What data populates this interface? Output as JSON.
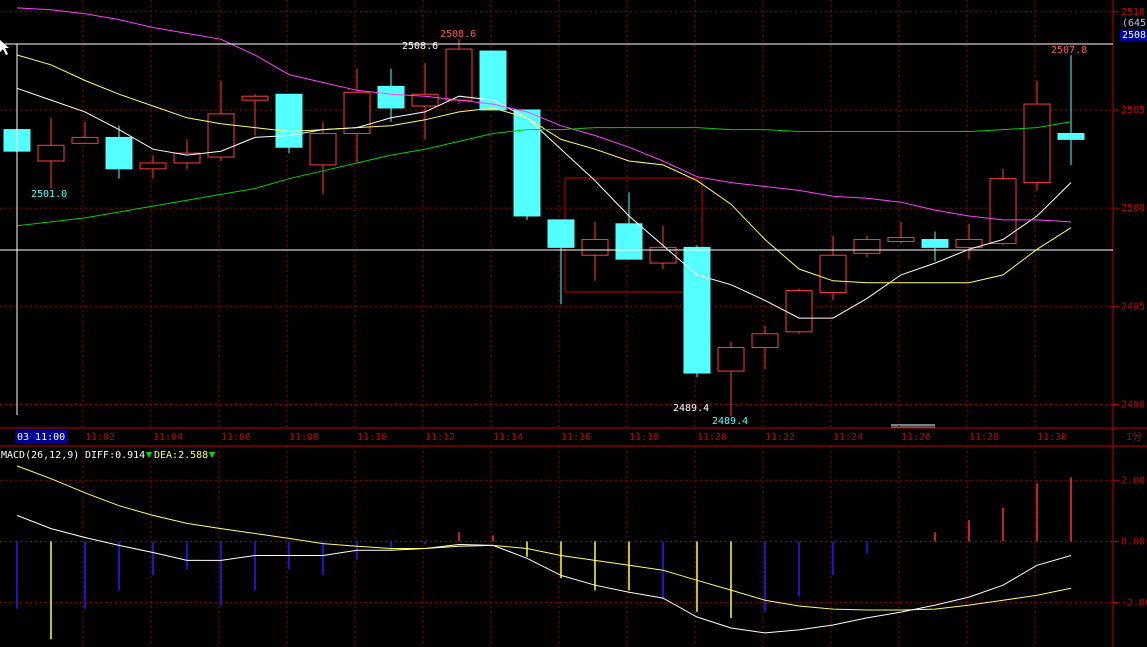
{
  "chart_data": [
    {
      "type": "candlestick",
      "categories": [
        "03 11:00",
        null,
        "11:02",
        null,
        "11:04",
        null,
        "11:06",
        null,
        "11:08",
        null,
        "11:10",
        null,
        "11:12",
        null,
        "11:14",
        null,
        "11:16",
        null,
        "11:18",
        null,
        "11:20",
        null,
        "11:22",
        null,
        "11:24",
        null,
        "11:26",
        null,
        "11:28",
        null,
        "11:30",
        null
      ],
      "open": [
        2504.0,
        2502.4,
        2503.3,
        2503.6,
        2502.0,
        2502.3,
        2502.6,
        2505.5,
        2505.8,
        2502.2,
        2503.8,
        2506.2,
        2505.2,
        2505.5,
        2508.0,
        2505.0,
        2499.4,
        2497.6,
        2499.2,
        2497.2,
        2498.0,
        2491.7,
        2492.9,
        2493.7,
        2495.7,
        2497.7,
        2498.3,
        2498.4,
        2498.0,
        2498.2,
        2501.3,
        2503.8
      ],
      "high": [
        2504.0,
        2504.6,
        2504.4,
        2504.2,
        2502.7,
        2503.5,
        2506.5,
        2505.8,
        2505.8,
        2504.4,
        2507.1,
        2507.1,
        2507.4,
        2508.6,
        2508.0,
        2505.0,
        2499.4,
        2499.3,
        2500.8,
        2499.1,
        2498.1,
        2493.2,
        2494.0,
        2495.9,
        2498.6,
        2498.6,
        2499.3,
        2498.8,
        2499.2,
        2502.0,
        2506.5,
        2507.8
      ],
      "low": [
        2502.9,
        2501.0,
        2503.3,
        2501.5,
        2501.5,
        2502.0,
        2502.4,
        2503.7,
        2502.8,
        2500.7,
        2502.3,
        2504.4,
        2503.5,
        2505.3,
        2505.0,
        2499.4,
        2495.1,
        2496.3,
        2497.4,
        2496.9,
        2491.4,
        2489.4,
        2491.8,
        2493.6,
        2495.3,
        2497.5,
        2498.2,
        2497.3,
        2497.4,
        2498.1,
        2500.9,
        2502.2
      ],
      "close": [
        2502.9,
        2503.2,
        2503.6,
        2502.0,
        2502.3,
        2502.8,
        2504.8,
        2505.7,
        2503.1,
        2503.8,
        2505.9,
        2505.1,
        2505.8,
        2508.1,
        2505.0,
        2499.6,
        2498.0,
        2498.4,
        2497.4,
        2498.0,
        2491.6,
        2492.9,
        2493.6,
        2495.8,
        2497.6,
        2498.4,
        2498.5,
        2498.0,
        2498.4,
        2501.5,
        2505.3,
        2503.5
      ],
      "up_color": "#ff3c3c",
      "down_color": "#54ffff",
      "lines": [
        {
          "color": "#ffffff",
          "values": [
            2506.1,
            2505.5,
            2504.9,
            2504.0,
            2503.0,
            2502.7,
            2502.9,
            2503.6,
            2503.7,
            2504.0,
            2504.1,
            2504.6,
            2504.9,
            2505.7,
            2505.5,
            2504.6,
            2503.0,
            2501.4,
            2499.6,
            2498.1,
            2496.6,
            2496.1,
            2495.3,
            2494.4,
            2494.4,
            2495.4,
            2496.6,
            2497.2,
            2497.9,
            2498.4,
            2499.6,
            2501.3
          ]
        },
        {
          "color": "#ffff66",
          "values": [
            2507.8,
            2507.3,
            2506.5,
            2505.8,
            2505.2,
            2504.6,
            2504.3,
            2504.1,
            2503.9,
            2504.0,
            2504.1,
            2504.2,
            2504.5,
            2504.9,
            2505.1,
            2504.6,
            2503.5,
            2503.0,
            2502.4,
            2502.2,
            2501.4,
            2500.2,
            2498.4,
            2496.9,
            2496.3,
            2496.2,
            2496.2,
            2496.2,
            2496.2,
            2496.6,
            2497.9,
            2499.0
          ]
        },
        {
          "color": "#ff40ff",
          "values": [
            2510.2,
            2510.1,
            2509.9,
            2509.6,
            2509.2,
            2508.9,
            2508.6,
            2507.8,
            2506.8,
            2506.4,
            2506.0,
            2505.8,
            2505.7,
            2505.5,
            2505.3,
            2504.9,
            2504.2,
            2503.7,
            2503.1,
            2502.4,
            2501.6,
            2501.3,
            2501.1,
            2500.9,
            2500.6,
            2500.5,
            2500.3,
            2499.9,
            2499.6,
            2499.4,
            2499.4,
            2499.3
          ]
        },
        {
          "color": "#00d000",
          "values": [
            2499.1,
            2499.3,
            2499.5,
            2499.8,
            2500.1,
            2500.4,
            2500.7,
            2501.0,
            2501.5,
            2501.9,
            2502.3,
            2502.7,
            2503.0,
            2503.4,
            2503.8,
            2504.0,
            2504.0,
            2504.1,
            2504.1,
            2504.1,
            2504.1,
            2504.0,
            2504.0,
            2503.9,
            2503.9,
            2503.9,
            2503.9,
            2503.9,
            2503.9,
            2504.0,
            2504.1,
            2504.4
          ]
        }
      ],
      "ylim": [
        2488.8,
        2510.6
      ],
      "yticks": [
        2490,
        2495,
        2500,
        2505,
        2510
      ],
      "grid": true,
      "annotations": [
        {
          "text": "2508.6",
          "color": "#ff5a5a"
        },
        {
          "text": "2508.6",
          "color": "#ffffff"
        },
        {
          "text": "2507.8",
          "color": "#ff5a5a"
        },
        {
          "text": "2501.0",
          "color": "#54ffff"
        },
        {
          "text": "2489.4",
          "color": "#ffffff"
        },
        {
          "text": "2489.4",
          "color": "#54ffff"
        }
      ],
      "crosshair_price": "2508",
      "crosshair_extra": "(645",
      "period": "1分"
    },
    {
      "type": "macd",
      "title": "MACD(26,12,9)",
      "diff_label": "DIFF:0.914",
      "dea_label": "DEA:2.588",
      "values": [
        -2.2,
        -3.2,
        -2.2,
        -1.6,
        -1.1,
        -0.9,
        -2.1,
        -1.6,
        -0.9,
        -1.1,
        -0.6,
        -0.3,
        -0.1,
        0.3,
        0.2,
        -0.5,
        -1.2,
        -1.6,
        -1.6,
        -1.9,
        -2.3,
        -2.5,
        -2.3,
        -1.8,
        -1.1,
        -0.4,
        0,
        0.3,
        0.7,
        1.1,
        1.9,
        2.1
      ],
      "bar_colors": [
        "#2020ff",
        "#ffff40",
        "#2020ff",
        "#2020ff",
        "#2020ff",
        "#2020ff",
        "#2020ff",
        "#2020ff",
        "#2020ff",
        "#2020ff",
        "#2020ff",
        "#2020ff",
        "#2020ff",
        "#ff3030",
        "#ff3030",
        "#ffff40",
        "#ffff40",
        "#ffff40",
        "#ffff40",
        "#2020ff",
        "#ffff40",
        "#ffff40",
        "#2020ff",
        "#2020ff",
        "#2020ff",
        "#2020ff",
        "#2020ff",
        "#ff3030",
        "#ff3030",
        "#ff3030",
        "#ff3030",
        "#ff3030"
      ],
      "diff": [
        0.85,
        0.42,
        0.13,
        -0.13,
        -0.36,
        -0.62,
        -0.62,
        -0.46,
        -0.46,
        -0.46,
        -0.29,
        -0.29,
        -0.23,
        -0.1,
        -0.13,
        -0.55,
        -1.11,
        -1.43,
        -1.66,
        -1.85,
        -2.47,
        -2.83,
        -2.99,
        -2.89,
        -2.73,
        -2.5,
        -2.31,
        -2.08,
        -1.82,
        -1.43,
        -0.78,
        -0.46
      ],
      "dea": [
        2.47,
        2.05,
        1.59,
        1.17,
        0.85,
        0.59,
        0.42,
        0.26,
        0.1,
        -0.07,
        -0.16,
        -0.23,
        -0.23,
        -0.16,
        -0.13,
        -0.23,
        -0.46,
        -0.62,
        -0.78,
        -0.94,
        -1.27,
        -1.59,
        -1.92,
        -2.11,
        -2.21,
        -2.24,
        -2.24,
        -2.21,
        -2.08,
        -1.92,
        -1.76,
        -1.53
      ],
      "diff_color": "#ffffff",
      "dea_color": "#ffff66",
      "ylim": [
        -3.45,
        3.12
      ],
      "yticks": [
        {
          "value": -2,
          "label": "-2.00"
        },
        {
          "value": 0,
          "label": "0.00"
        },
        {
          "value": 2,
          "label": "2.00"
        }
      ],
      "grid": true
    }
  ]
}
